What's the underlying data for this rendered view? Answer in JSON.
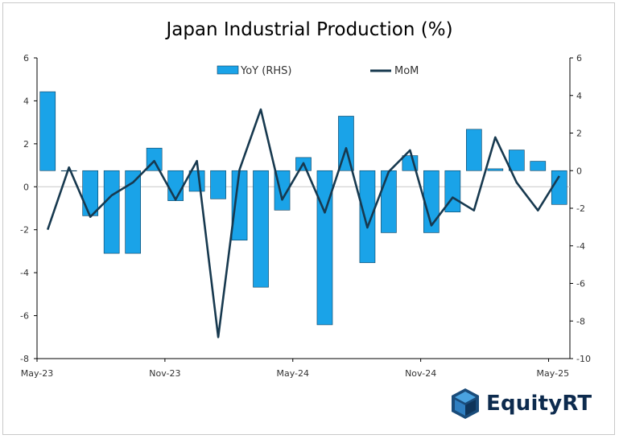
{
  "chart_data": {
    "type": "bar+line",
    "title": "Japan Industrial Production (%)",
    "x": [
      "May-23",
      "Jun-23",
      "Jul-23",
      "Aug-23",
      "Sep-23",
      "Oct-23",
      "Nov-23",
      "Dec-23",
      "Jan-24",
      "Feb-24",
      "Mar-24",
      "Apr-24",
      "May-24",
      "Jun-24",
      "Jul-24",
      "Aug-24",
      "Sep-24",
      "Oct-24",
      "Nov-24",
      "Dec-24",
      "Jan-25",
      "Feb-25",
      "Mar-25",
      "Apr-25",
      "May-25"
    ],
    "x_tick_labels": [
      "May-23",
      "Nov-23",
      "May-24",
      "Nov-24",
      "May-25"
    ],
    "left_axis": {
      "ylim": [
        -8,
        6
      ],
      "ticks": [
        "6",
        "4",
        "2",
        "0",
        "-2",
        "-4",
        "-6",
        "-8"
      ]
    },
    "right_axis": {
      "ylim": [
        -10,
        6
      ],
      "ticks": [
        "6",
        "4",
        "2",
        "0",
        "-2",
        "-4",
        "-6",
        "-8",
        "-10"
      ]
    },
    "series": [
      {
        "name": "YoY (RHS)",
        "kind": "bar",
        "axis": "right",
        "color": "#1aa3e8",
        "values": [
          4.2,
          0.0,
          -2.4,
          -4.4,
          -4.4,
          1.2,
          -1.6,
          -1.1,
          -1.5,
          -3.7,
          -6.2,
          -2.1,
          0.7,
          -8.2,
          2.9,
          -4.9,
          -3.3,
          0.8,
          -3.3,
          -2.2,
          2.2,
          0.1,
          1.1,
          0.5,
          -1.8
        ]
      },
      {
        "name": "MoM",
        "kind": "line",
        "axis": "left",
        "color": "#17394f",
        "values": [
          -2.0,
          0.9,
          -1.4,
          -0.4,
          0.2,
          1.2,
          -0.6,
          1.2,
          -7.0,
          0.8,
          3.6,
          -0.6,
          1.1,
          -1.2,
          1.8,
          -1.9,
          0.7,
          1.7,
          -1.8,
          -0.5,
          -1.1,
          2.3,
          0.2,
          -1.1,
          0.5
        ]
      }
    ],
    "legend": "top-center",
    "grid": false,
    "zero_line": true
  },
  "logo": {
    "text": "EquityRT"
  }
}
